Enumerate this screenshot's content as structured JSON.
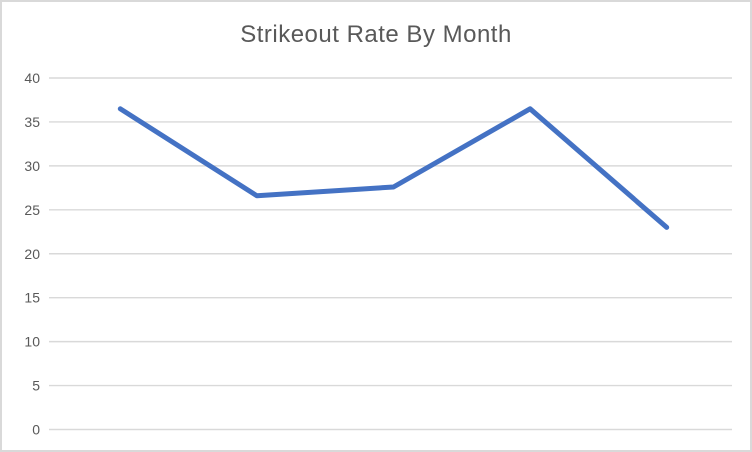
{
  "chart_data": {
    "type": "line",
    "title": "Strikeout Rate By Month",
    "values": [
      36.5,
      26.6,
      27.6,
      36.5,
      23
    ],
    "num_points": 5,
    "x_tick_labels": [],
    "y_ticks": [
      0,
      5,
      10,
      15,
      20,
      25,
      30,
      35,
      40
    ],
    "ylim": [
      0,
      40
    ],
    "xlabel": "",
    "ylabel": "",
    "grid": true,
    "legend": "none"
  },
  "colors": {
    "line": "#4472C4",
    "gridline": "#D9D9D9",
    "tick_label": "#595959",
    "title": "#595959",
    "border": "#D9D9D9",
    "background": "#FFFFFF"
  }
}
